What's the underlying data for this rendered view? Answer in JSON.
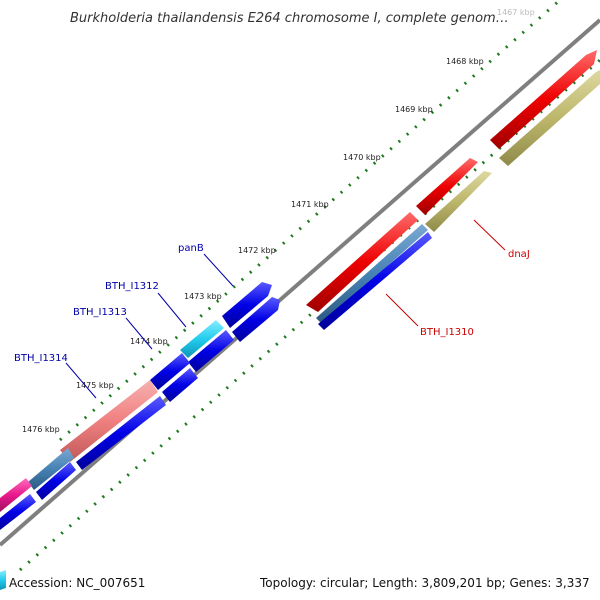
{
  "title": "Burkholderia thailandensis E264 chromosome I, complete genom…",
  "footer": {
    "accession": "Accession: NC_007651",
    "summary": "Topology: circular; Length: 3,809,201 bp; Genes: 3,337"
  },
  "ticks": [
    "1467 kbp",
    "1468 kbp",
    "1469 kbp",
    "1470 kbp",
    "1471 kbp",
    "1472 kbp",
    "1473 kbp",
    "1474 kbp",
    "1475 kbp",
    "1476 kbp"
  ],
  "gene_labels": {
    "panB": "panB",
    "bth1312": "BTH_I1312",
    "bth1313": "BTH_I1313",
    "bth1314": "BTH_I1314",
    "dnaJ": "dnaJ",
    "bth1310": "BTH_I1310"
  },
  "colors": {
    "backbone": "#7f7f7f",
    "tick": "#1f7a1f",
    "cds_blue": "#0000e6",
    "cds_red": "#ee0000",
    "cds_olive": "#bdb76b",
    "cds_cyan": "#22ccee",
    "cds_steel": "#4682b4",
    "cds_salmon": "#f08080",
    "cds_magenta": "#e8198b",
    "label_blue": "#0000aa",
    "label_red": "#cc0000"
  }
}
